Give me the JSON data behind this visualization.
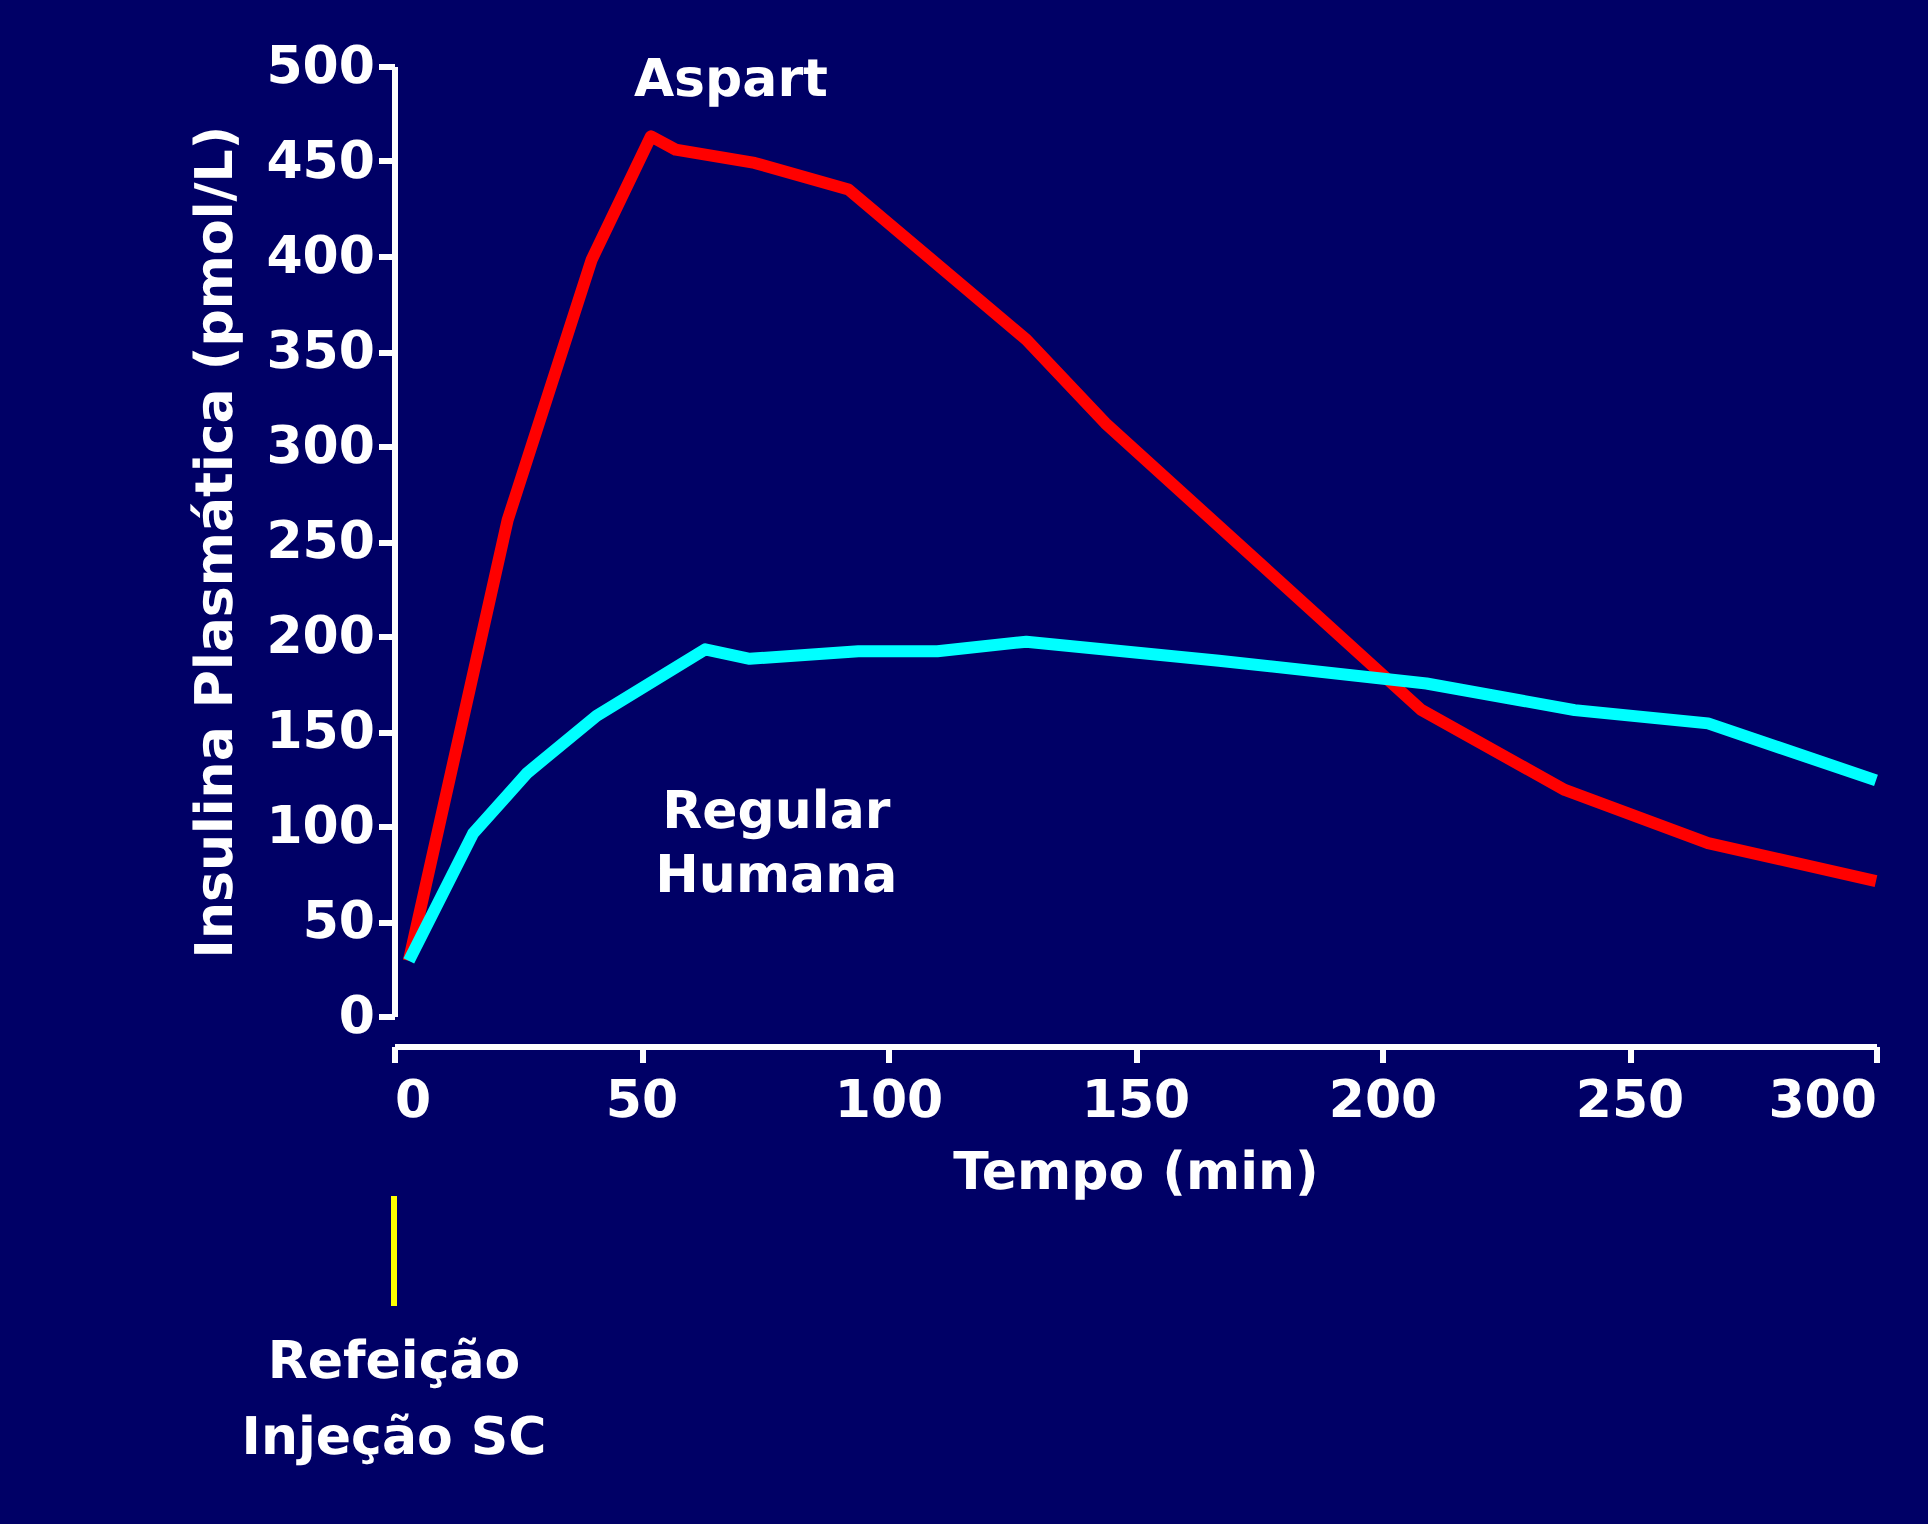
{
  "chart_data": {
    "type": "line",
    "xlabel": "Tempo (min)",
    "ylabel": "Insulina Plasmática (pmol/L)",
    "xlim": [
      0,
      300
    ],
    "xticks": [
      0,
      50,
      100,
      150,
      200,
      250,
      300
    ],
    "ylim": [
      0,
      500
    ],
    "yticks": [
      0,
      50,
      100,
      150,
      200,
      250,
      300,
      350,
      400,
      450,
      500
    ],
    "grid": false,
    "legend": false,
    "line_style": "solid",
    "marker": "none",
    "series": [
      {
        "name": "Aspart",
        "color": "#ff0000",
        "x": [
          3,
          23,
          40,
          52,
          57,
          73,
          92,
          128,
          144,
          208,
          237,
          266,
          300
        ],
        "values": [
          29,
          261,
          398,
          463,
          456,
          449,
          435,
          356,
          312,
          161,
          119,
          91,
          71
        ]
      },
      {
        "name": "Regular Humana",
        "color": "#00ffff",
        "x": [
          3,
          16,
          27,
          41,
          63,
          72,
          94,
          110,
          128,
          167,
          209,
          239,
          266,
          300
        ],
        "values": [
          29,
          96,
          128,
          158,
          193,
          188,
          192,
          192,
          197,
          187,
          175,
          161,
          154,
          124
        ]
      }
    ],
    "annotations": [
      "Refeição Injeção SC"
    ]
  }
}
